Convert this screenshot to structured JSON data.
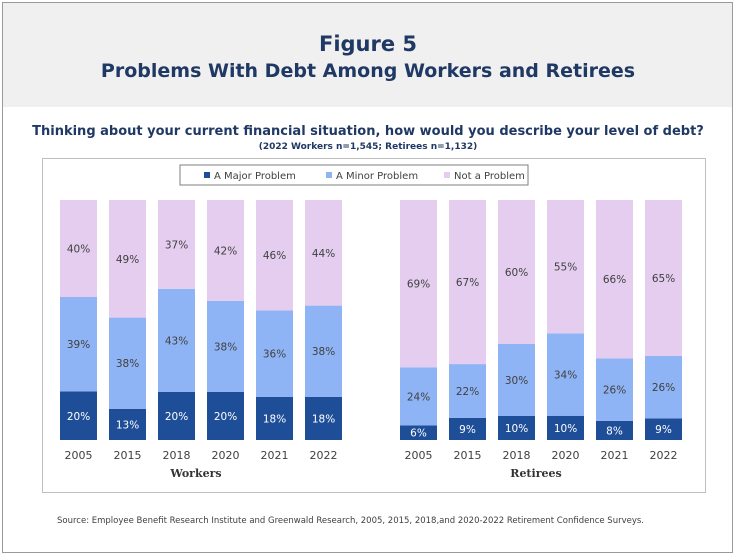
{
  "header": {
    "figure_label": "Figure 5",
    "title": "Problems With Debt Among Workers and Retirees"
  },
  "question": "Thinking about your current financial situation, how would you describe your level of debt?",
  "sample_note": "(2022 Workers n=1,545; Retirees n=1,132)",
  "source": "Source:  Employee Benefit Research Institute and Greenwald Research, 2005, 2015, 2018,and 2020-2022 Retirement Confidence Surveys.",
  "colors": {
    "major": "#1f4e99",
    "minor": "#8fb4f5",
    "not": "#e4cdef",
    "major_label": "#ffffff",
    "other_label": "#404040"
  },
  "chart_data": {
    "type": "bar",
    "stacked": true,
    "percent": true,
    "legend": [
      "A Major Problem",
      "A Minor Problem",
      "Not a Problem"
    ],
    "legend_position": "top",
    "groups": [
      {
        "name": "Workers",
        "categories": [
          "2005",
          "2015",
          "2018",
          "2020",
          "2021",
          "2022"
        ],
        "series": [
          {
            "name": "A Major Problem",
            "values": [
              20,
              13,
              20,
              20,
              18,
              18
            ],
            "labels": [
              "20%",
              "13%",
              "20%",
              "20%",
              "18%",
              "18%"
            ]
          },
          {
            "name": "A Minor Problem",
            "values": [
              39,
              38,
              43,
              38,
              36,
              38
            ],
            "labels": [
              "39%",
              "38%",
              "43%",
              "38%",
              "36%",
              "38%"
            ]
          },
          {
            "name": "Not a Problem",
            "values": [
              40,
              49,
              37,
              42,
              46,
              44
            ],
            "labels": [
              "40%",
              "49%",
              "37%",
              "42%",
              "46%",
              "44%"
            ]
          }
        ]
      },
      {
        "name": "Retirees",
        "categories": [
          "2005",
          "2015",
          "2018",
          "2020",
          "2021",
          "2022"
        ],
        "series": [
          {
            "name": "A Major Problem",
            "values": [
              6,
              9,
              10,
              10,
              8,
              9
            ],
            "labels": [
              "6%",
              "9%",
              "10%",
              "10%",
              "8%",
              "9%"
            ]
          },
          {
            "name": "A Minor Problem",
            "values": [
              24,
              22,
              30,
              34,
              26,
              26
            ],
            "labels": [
              "24%",
              "22%",
              "30%",
              "34%",
              "26%",
              "26%"
            ]
          },
          {
            "name": "Not a Problem",
            "values": [
              69,
              67,
              60,
              55,
              66,
              65
            ],
            "labels": [
              "69%",
              "67%",
              "60%",
              "55%",
              "66%",
              "65%"
            ]
          }
        ]
      }
    ]
  }
}
